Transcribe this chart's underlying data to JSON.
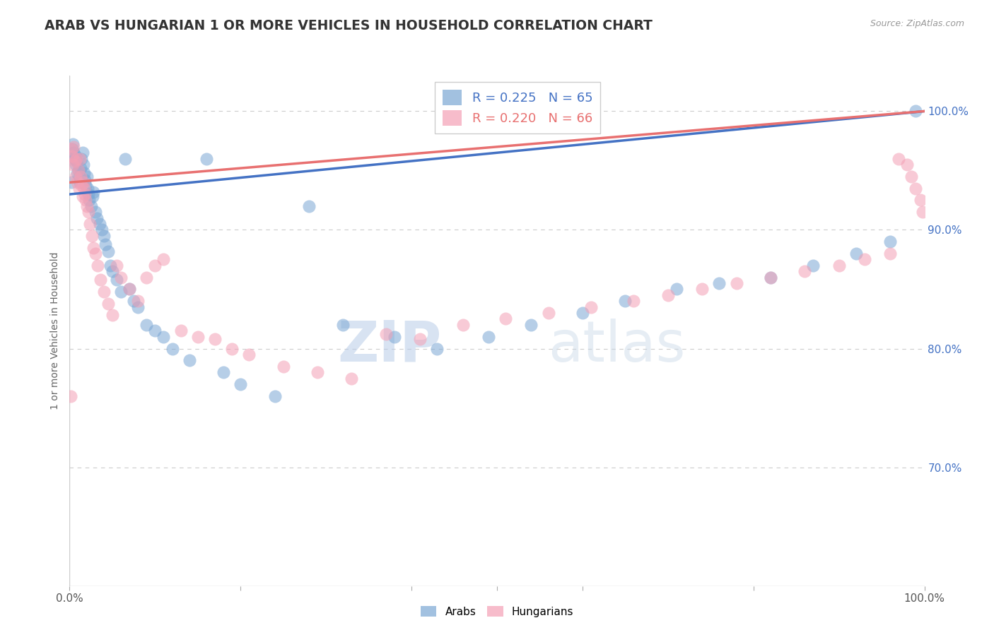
{
  "title": "ARAB VS HUNGARIAN 1 OR MORE VEHICLES IN HOUSEHOLD CORRELATION CHART",
  "source": "Source: ZipAtlas.com",
  "ylabel": "1 or more Vehicles in Household",
  "xlim": [
    0,
    1.0
  ],
  "ylim": [
    0.6,
    1.03
  ],
  "ytick_positions": [
    0.7,
    0.8,
    0.9,
    1.0
  ],
  "ytick_labels": [
    "70.0%",
    "80.0%",
    "90.0%",
    "100.0%"
  ],
  "arab_color": "#7ba7d4",
  "hungarian_color": "#f4a0b5",
  "arab_line_color": "#4472c4",
  "hungarian_line_color": "#e87070",
  "legend_arab": "R = 0.225   N = 65",
  "legend_hungarian": "R = 0.220   N = 66",
  "background_color": "#ffffff",
  "grid_color": "#cccccc",
  "watermark_zip": "ZIP",
  "watermark_atlas": "atlas",
  "title_color": "#333333",
  "ytick_color": "#4472c4",
  "source_color": "#aaaaaa",
  "arab_points_x": [
    0.002,
    0.003,
    0.004,
    0.005,
    0.006,
    0.007,
    0.007,
    0.008,
    0.009,
    0.01,
    0.011,
    0.012,
    0.013,
    0.014,
    0.015,
    0.016,
    0.017,
    0.018,
    0.019,
    0.02,
    0.021,
    0.022,
    0.023,
    0.025,
    0.027,
    0.028,
    0.03,
    0.032,
    0.035,
    0.038,
    0.04,
    0.042,
    0.045,
    0.048,
    0.05,
    0.055,
    0.06,
    0.065,
    0.07,
    0.075,
    0.08,
    0.09,
    0.1,
    0.11,
    0.12,
    0.14,
    0.16,
    0.18,
    0.2,
    0.24,
    0.28,
    0.32,
    0.38,
    0.43,
    0.49,
    0.54,
    0.6,
    0.65,
    0.71,
    0.76,
    0.82,
    0.87,
    0.92,
    0.96,
    0.99
  ],
  "arab_points_y": [
    0.94,
    0.968,
    0.972,
    0.965,
    0.96,
    0.955,
    0.962,
    0.958,
    0.948,
    0.95,
    0.945,
    0.94,
    0.952,
    0.96,
    0.965,
    0.955,
    0.948,
    0.942,
    0.938,
    0.945,
    0.935,
    0.93,
    0.925,
    0.92,
    0.928,
    0.932,
    0.915,
    0.91,
    0.905,
    0.9,
    0.895,
    0.888,
    0.882,
    0.87,
    0.865,
    0.858,
    0.848,
    0.96,
    0.85,
    0.84,
    0.835,
    0.82,
    0.815,
    0.81,
    0.8,
    0.79,
    0.96,
    0.78,
    0.77,
    0.76,
    0.92,
    0.82,
    0.81,
    0.8,
    0.81,
    0.82,
    0.83,
    0.84,
    0.85,
    0.855,
    0.86,
    0.87,
    0.88,
    0.89,
    1.0
  ],
  "hungarian_points_x": [
    0.001,
    0.002,
    0.003,
    0.004,
    0.005,
    0.006,
    0.007,
    0.008,
    0.009,
    0.01,
    0.011,
    0.012,
    0.013,
    0.014,
    0.015,
    0.016,
    0.017,
    0.018,
    0.019,
    0.02,
    0.022,
    0.024,
    0.026,
    0.028,
    0.03,
    0.033,
    0.036,
    0.04,
    0.045,
    0.05,
    0.055,
    0.06,
    0.07,
    0.08,
    0.09,
    0.1,
    0.11,
    0.13,
    0.15,
    0.17,
    0.19,
    0.21,
    0.25,
    0.29,
    0.33,
    0.37,
    0.41,
    0.46,
    0.51,
    0.56,
    0.61,
    0.66,
    0.7,
    0.74,
    0.78,
    0.82,
    0.86,
    0.9,
    0.93,
    0.96,
    0.97,
    0.98,
    0.985,
    0.99,
    0.995,
    0.998
  ],
  "hungarian_points_y": [
    0.76,
    0.968,
    0.962,
    0.955,
    0.97,
    0.958,
    0.945,
    0.96,
    0.94,
    0.95,
    0.935,
    0.96,
    0.945,
    0.938,
    0.928,
    0.94,
    0.935,
    0.93,
    0.925,
    0.92,
    0.915,
    0.905,
    0.895,
    0.885,
    0.88,
    0.87,
    0.858,
    0.848,
    0.838,
    0.828,
    0.87,
    0.86,
    0.85,
    0.84,
    0.86,
    0.87,
    0.875,
    0.815,
    0.81,
    0.808,
    0.8,
    0.795,
    0.785,
    0.78,
    0.775,
    0.812,
    0.808,
    0.82,
    0.825,
    0.83,
    0.835,
    0.84,
    0.845,
    0.85,
    0.855,
    0.86,
    0.865,
    0.87,
    0.875,
    0.88,
    0.96,
    0.955,
    0.945,
    0.935,
    0.925,
    0.915
  ]
}
